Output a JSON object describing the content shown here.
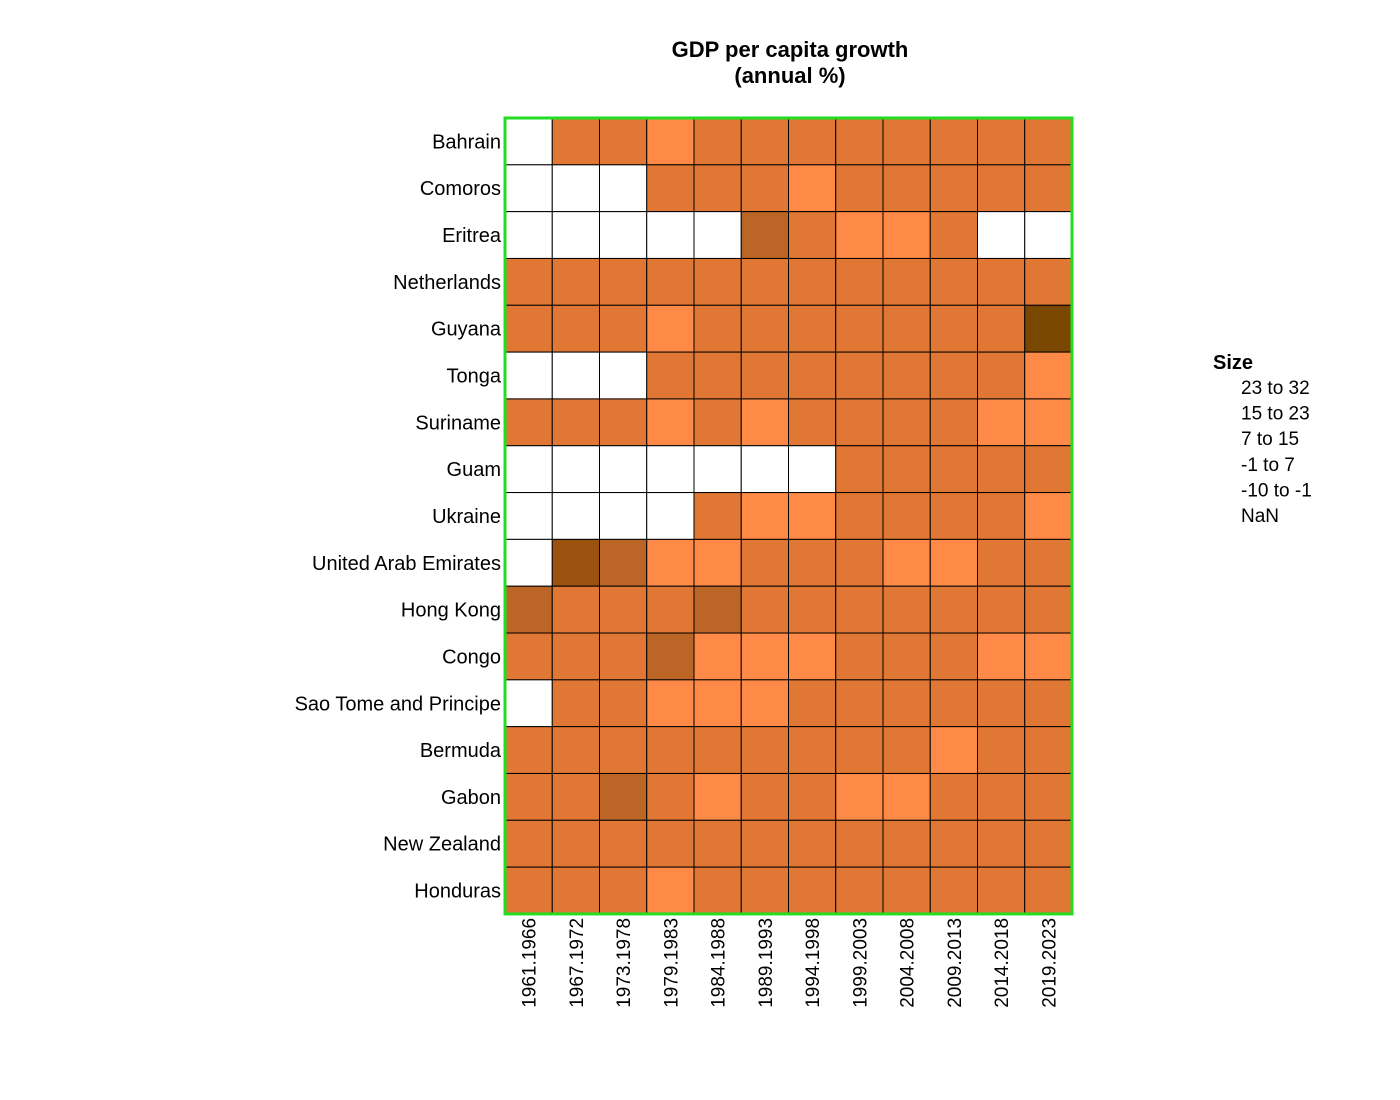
{
  "chart_data": {
    "type": "heatmap",
    "title": [
      "GDP per capita growth",
      "(annual %)"
    ],
    "rows": [
      "Bahrain",
      "Comoros",
      "Eritrea",
      "Netherlands",
      "Guyana",
      "Tonga",
      "Suriname",
      "Guam",
      "Ukraine",
      "United Arab Emirates",
      "Hong Kong",
      "Congo",
      "Sao Tome and Principe",
      "Bermuda",
      "Gabon",
      "New Zealand",
      "Honduras"
    ],
    "columns": [
      "1961.1966",
      "1967.1972",
      "1973.1978",
      "1979.1983",
      "1984.1988",
      "1989.1993",
      "1994.1998",
      "1999.2003",
      "2004.2008",
      "2009.2013",
      "2014.2018",
      "2019.2023"
    ],
    "bins": [
      {
        "label": "23  to  32",
        "color": "#7a4700"
      },
      {
        "label": "15  to  23",
        "color": "#9c520f"
      },
      {
        "label": "7  to  15",
        "color": "#bb6526"
      },
      {
        "label": "-1  to  7",
        "color": "#e07734"
      },
      {
        "label": "-10  to  -1",
        "color": "#ff8a48"
      },
      {
        "label": "NaN",
        "color": "#ffffff"
      }
    ],
    "cells": [
      [
        5,
        3,
        3,
        4,
        3,
        3,
        3,
        3,
        3,
        3,
        3,
        3
      ],
      [
        5,
        5,
        5,
        3,
        3,
        3,
        4,
        3,
        3,
        3,
        3,
        3
      ],
      [
        5,
        5,
        5,
        5,
        5,
        2,
        3,
        4,
        4,
        3,
        5,
        5
      ],
      [
        3,
        3,
        3,
        3,
        3,
        3,
        3,
        3,
        3,
        3,
        3,
        3
      ],
      [
        3,
        3,
        3,
        4,
        3,
        3,
        3,
        3,
        3,
        3,
        3,
        0
      ],
      [
        5,
        5,
        5,
        3,
        3,
        3,
        3,
        3,
        3,
        3,
        3,
        4
      ],
      [
        3,
        3,
        3,
        4,
        3,
        4,
        3,
        3,
        3,
        3,
        4,
        4
      ],
      [
        5,
        5,
        5,
        5,
        5,
        5,
        5,
        3,
        3,
        3,
        3,
        3
      ],
      [
        5,
        5,
        5,
        5,
        3,
        4,
        4,
        3,
        3,
        3,
        3,
        4
      ],
      [
        5,
        1,
        2,
        4,
        4,
        3,
        3,
        3,
        4,
        4,
        3,
        3
      ],
      [
        2,
        3,
        3,
        3,
        2,
        3,
        3,
        3,
        3,
        3,
        3,
        3
      ],
      [
        3,
        3,
        3,
        2,
        4,
        4,
        4,
        3,
        3,
        3,
        4,
        4
      ],
      [
        5,
        3,
        3,
        4,
        4,
        4,
        3,
        3,
        3,
        3,
        3,
        3
      ],
      [
        3,
        3,
        3,
        3,
        3,
        3,
        3,
        3,
        3,
        4,
        3,
        3
      ],
      [
        3,
        3,
        2,
        3,
        4,
        3,
        3,
        4,
        4,
        3,
        3,
        3
      ],
      [
        3,
        3,
        3,
        3,
        3,
        3,
        3,
        3,
        3,
        3,
        3,
        3
      ],
      [
        3,
        3,
        3,
        4,
        3,
        3,
        3,
        3,
        3,
        3,
        3,
        3
      ]
    ],
    "legend": {
      "title": "Size",
      "position": "right"
    },
    "frame_color": "#22dd22",
    "grid_color": "#000000"
  }
}
